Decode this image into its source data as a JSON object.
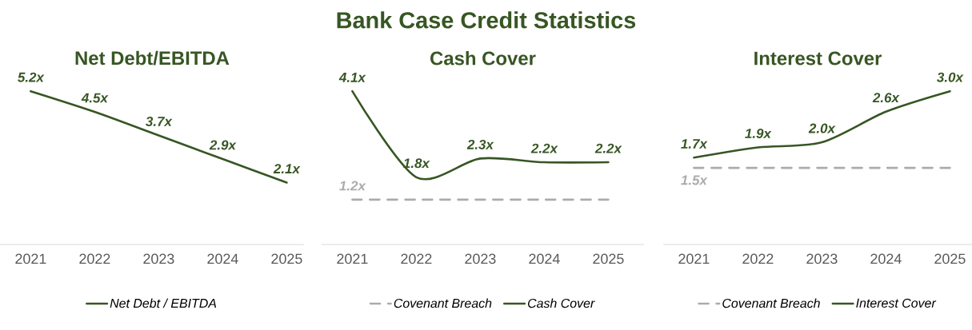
{
  "chart_data": [
    {
      "type": "line",
      "title": "Net Debt/EBITDA",
      "categories": [
        "2021",
        "2022",
        "2023",
        "2024",
        "2025"
      ],
      "series": [
        {
          "name": "Net Debt / EBITDA",
          "color": "#375623",
          "line_style": "solid",
          "values": [
            5.2,
            4.5,
            3.7,
            2.9,
            2.1
          ],
          "value_labels": [
            "5.2x",
            "4.5x",
            "3.7x",
            "2.9x",
            "2.1x"
          ]
        }
      ],
      "tick_labels": "x",
      "legend": "bottom",
      "marker": "none"
    },
    {
      "type": "line",
      "title": "Bank Case Credit Statistics",
      "subtitle": "Cash Cover",
      "categories": [
        "2021",
        "2022",
        "2023",
        "2024",
        "2025"
      ],
      "series": [
        {
          "name": "Covenant Breach",
          "color": "#aeaaaa",
          "line_style": "dashed",
          "values": [
            1.2,
            1.2,
            1.2,
            1.2,
            1.2
          ],
          "value_labels": [
            "1.2x",
            null,
            null,
            null,
            null
          ]
        },
        {
          "name": "Cash Cover",
          "color": "#375623",
          "line_style": "solid",
          "values": [
            4.1,
            1.8,
            2.3,
            2.2,
            2.2
          ],
          "value_labels": [
            "4.1x",
            "1.8x",
            "2.3x",
            "2.2x",
            "2.2x"
          ]
        }
      ],
      "tick_labels": "x",
      "legend": "bottom",
      "marker": "none"
    },
    {
      "type": "line",
      "title": "Interest Cover",
      "categories": [
        "2021",
        "2022",
        "2023",
        "2024",
        "2025"
      ],
      "series": [
        {
          "name": "Covenant Breach",
          "color": "#aeaaaa",
          "line_style": "dashed",
          "values": [
            1.5,
            1.5,
            1.5,
            1.5,
            1.5
          ],
          "value_labels": [
            "1.5x",
            null,
            null,
            null,
            null
          ]
        },
        {
          "name": "Interest Cover",
          "color": "#375623",
          "line_style": "solid",
          "values": [
            1.7,
            1.9,
            2.0,
            2.6,
            3.0
          ],
          "value_labels": [
            "1.7x",
            "1.9x",
            "2.0x",
            "2.6x",
            "3.0x"
          ]
        }
      ],
      "tick_labels": "x",
      "legend": "bottom",
      "marker": "none"
    }
  ]
}
